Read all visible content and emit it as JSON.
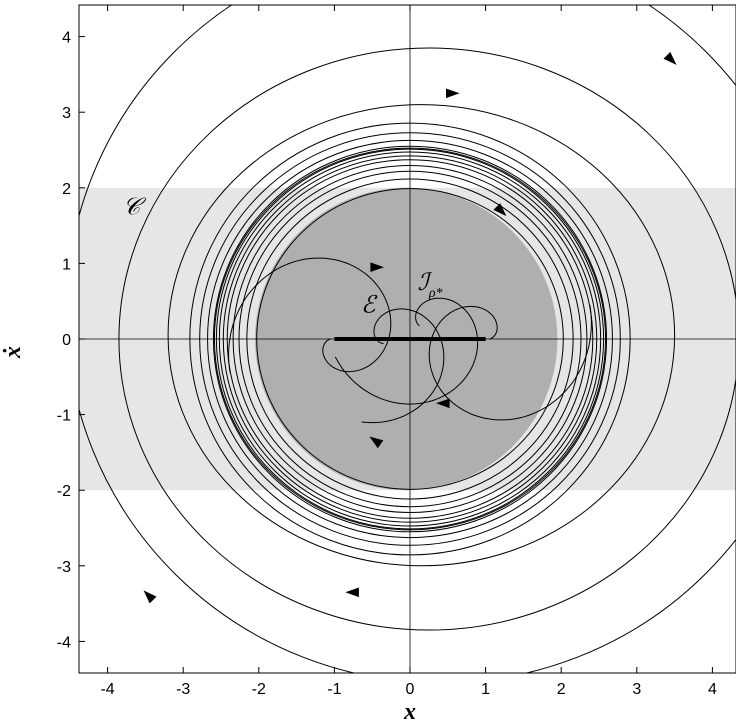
{
  "chart_data": {
    "type": "phase-portrait",
    "xlabel": "x",
    "ylabel": "ẋ",
    "xlim": [
      -4.4,
      4.4
    ],
    "ylim": [
      -4.4,
      4.4
    ],
    "xticks": [
      -4,
      -3,
      -2,
      -1,
      0,
      1,
      2,
      3,
      4
    ],
    "yticks": [
      4,
      3,
      2,
      1,
      0,
      -1,
      -2,
      -3,
      -4
    ],
    "grid": false,
    "regions": [
      {
        "name": "C",
        "shape": "band",
        "y_min": -2,
        "y_max": 2,
        "color": "#e6e6e6"
      },
      {
        "name": "I_rho*",
        "shape": "disk",
        "center": [
          -0.05,
          0.0
        ],
        "radius": 2.0,
        "color": "#afafaf"
      }
    ],
    "equilibrium_set": {
      "name": "E",
      "x": [
        -1,
        1
      ],
      "y": 0
    },
    "limit_cycle": {
      "amplitude_x": 2.6,
      "amplitude_y": 2.55
    },
    "annotations": [
      {
        "id": "C",
        "text": "𝒞",
        "x": -3.8,
        "y": 1.65
      },
      {
        "id": "E",
        "text": "ℰ",
        "x": -0.65,
        "y": 0.35
      },
      {
        "id": "I",
        "text": "ℐ",
        "sub": "ρ*",
        "x": 0.1,
        "y": 0.65
      }
    ]
  }
}
